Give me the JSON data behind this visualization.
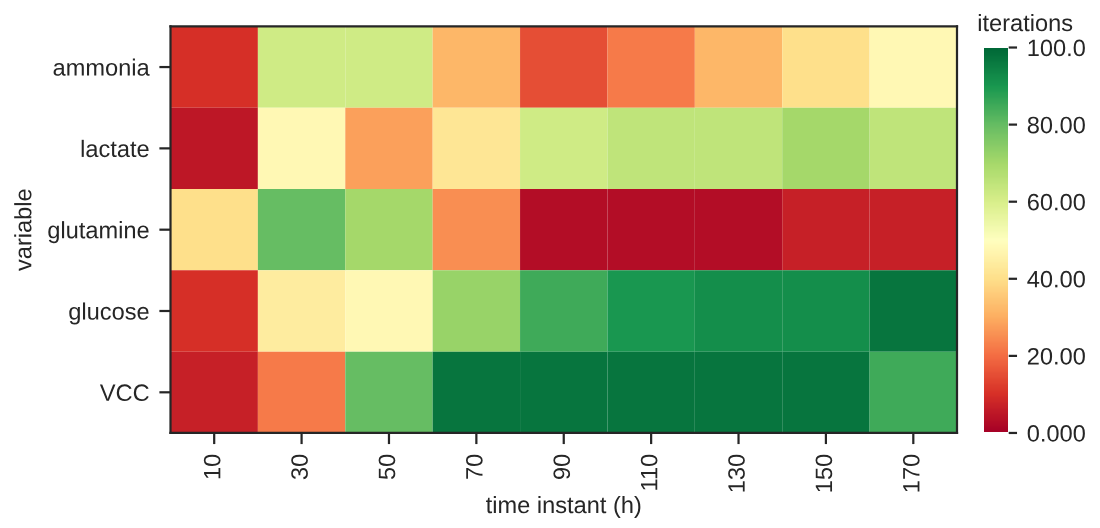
{
  "chart_data": {
    "type": "heatmap",
    "xlabel": "time instant (h)",
    "ylabel": "variable",
    "clabel": "iterations",
    "categories": [
      "10",
      "30",
      "50",
      "70",
      "90",
      "110",
      "130",
      "150",
      "170"
    ],
    "y_categories": [
      "ammonia",
      "lactate",
      "glutamine",
      "glucose",
      "VCC"
    ],
    "cells": [
      [
        10,
        62,
        62,
        32,
        15,
        22,
        32,
        40,
        48
      ],
      [
        5,
        48,
        28,
        42,
        62,
        65,
        65,
        70,
        65
      ],
      [
        40,
        80,
        70,
        25,
        3,
        3,
        3,
        7,
        7
      ],
      [
        10,
        44,
        48,
        72,
        85,
        90,
        92,
        92,
        97
      ],
      [
        7,
        22,
        80,
        97,
        97,
        97,
        97,
        97,
        85
      ]
    ],
    "clim": [
      0,
      100
    ],
    "cticks": [
      {
        "value": 0,
        "label": "0.000"
      },
      {
        "value": 20,
        "label": "20.00"
      },
      {
        "value": 40,
        "label": "40.00"
      },
      {
        "value": 60,
        "label": "60.00"
      },
      {
        "value": 80,
        "label": "80.00"
      },
      {
        "value": 100,
        "label": "100.0"
      }
    ]
  }
}
